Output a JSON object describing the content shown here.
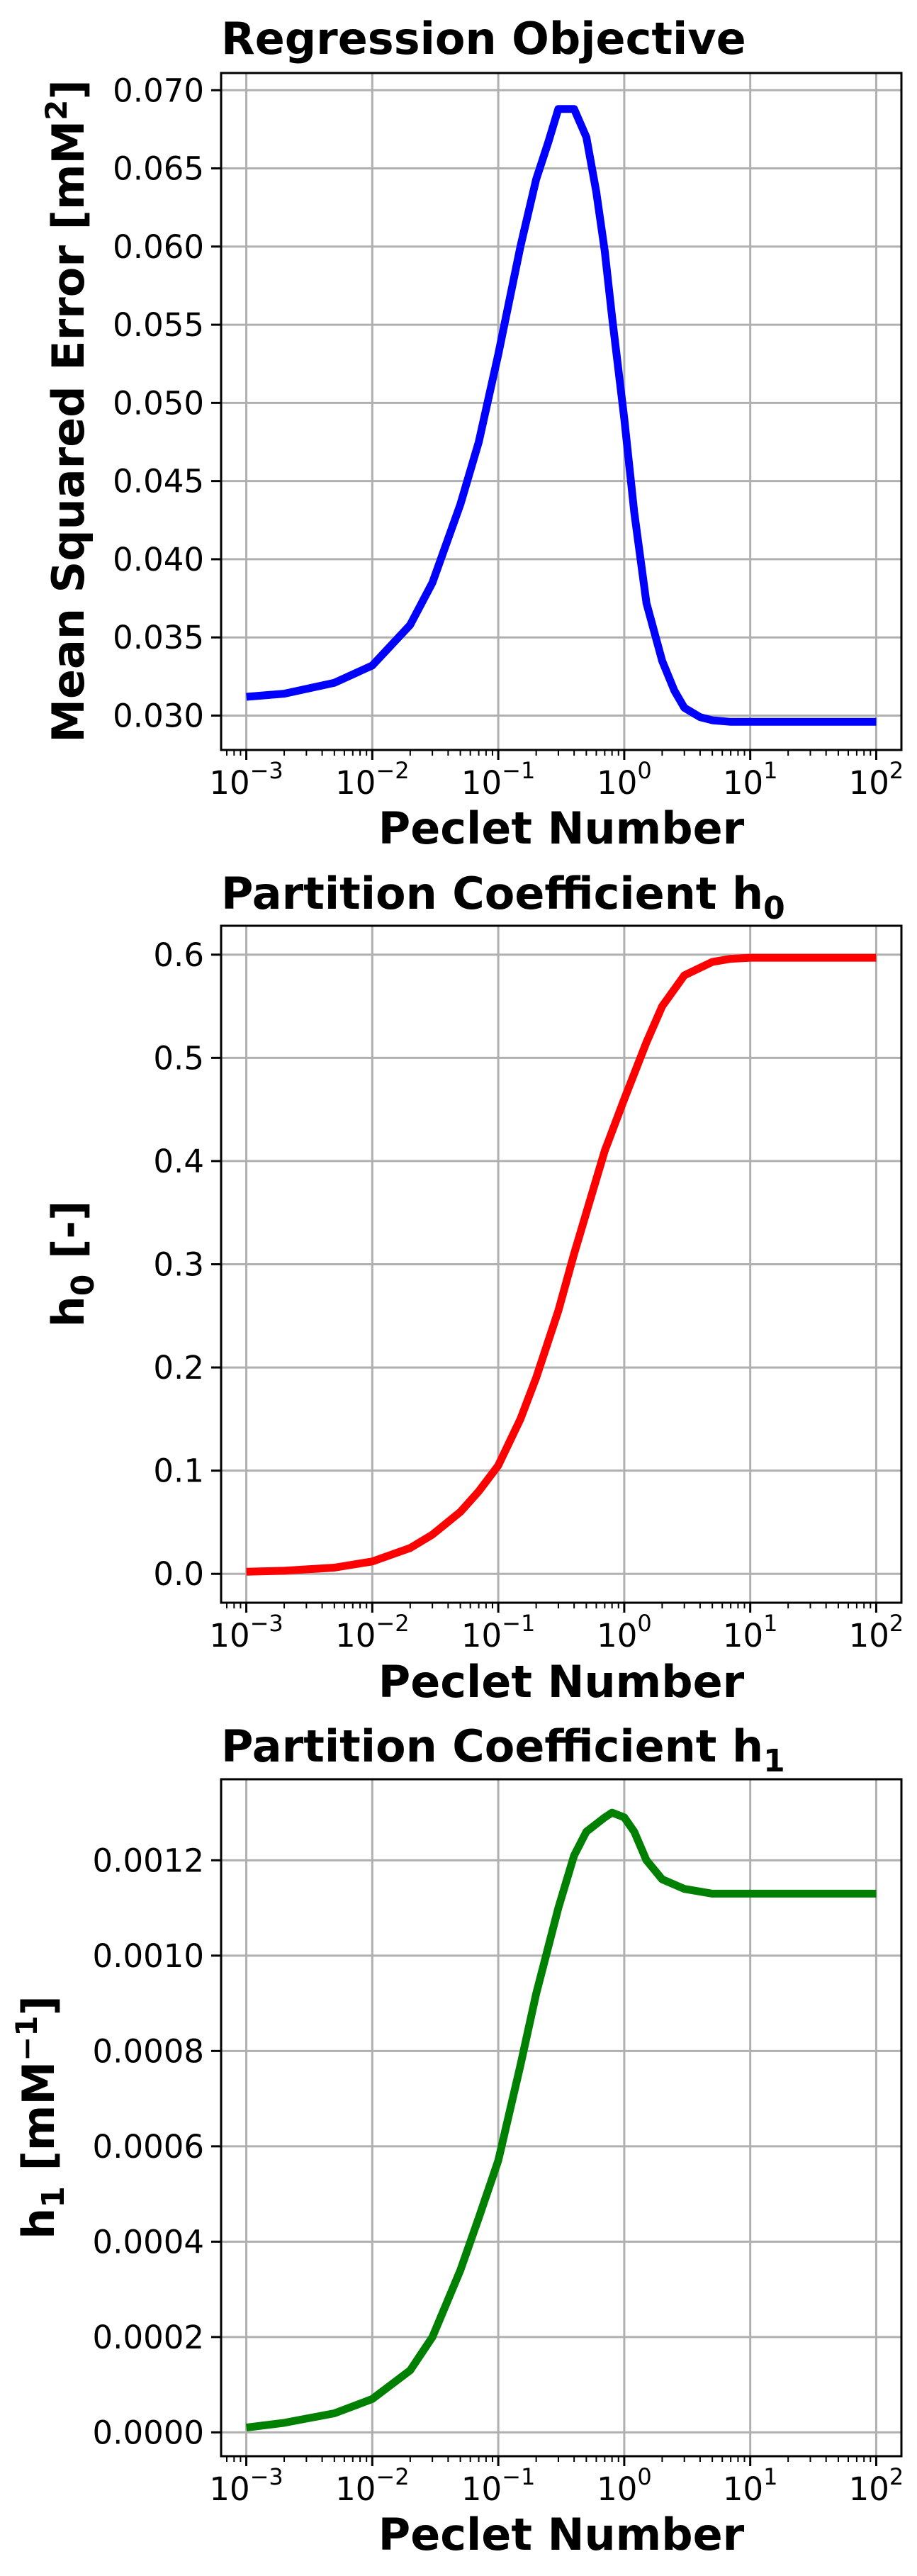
{
  "chart_data": [
    {
      "type": "line",
      "title": "Regression Objective",
      "xlabel": "Peclet Number",
      "ylabel": "Mean Squared Error [mM",
      "ylabel_sup": "2",
      "ylabel_tail": "]",
      "xscale": "log",
      "xlim": [
        -3.2,
        2.2
      ],
      "ylim": [
        0.0278,
        0.0711
      ],
      "grid": true,
      "color": "#0000ff",
      "xticks": [
        {
          "base": "10",
          "exp": "−3"
        },
        {
          "base": "10",
          "exp": "−2"
        },
        {
          "base": "10",
          "exp": "−1"
        },
        {
          "base": "10",
          "exp": "0"
        },
        {
          "base": "10",
          "exp": "1"
        },
        {
          "base": "10",
          "exp": "2"
        }
      ],
      "yticks": [
        "0.030",
        "0.035",
        "0.040",
        "0.045",
        "0.050",
        "0.055",
        "0.060",
        "0.065",
        "0.070"
      ],
      "ytick_values": [
        0.03,
        0.035,
        0.04,
        0.045,
        0.05,
        0.055,
        0.06,
        0.065,
        0.07
      ],
      "series": [
        {
          "x": [
            0.001,
            0.002,
            0.005,
            0.01,
            0.02,
            0.03,
            0.05,
            0.07,
            0.1,
            0.15,
            0.2,
            0.25,
            0.3,
            0.4,
            0.5,
            0.6,
            0.7,
            0.8,
            1.0,
            1.2,
            1.5,
            2,
            2.5,
            3,
            4,
            5,
            7,
            10,
            20,
            50,
            100
          ],
          "y": [
            0.0312,
            0.0314,
            0.0321,
            0.0332,
            0.0358,
            0.0385,
            0.0435,
            0.0475,
            0.0531,
            0.06,
            0.0643,
            0.0667,
            0.0688,
            0.0688,
            0.067,
            0.0635,
            0.0597,
            0.0555,
            0.049,
            0.043,
            0.0372,
            0.0335,
            0.0316,
            0.0305,
            0.0299,
            0.0297,
            0.0296,
            0.0296,
            0.0296,
            0.0296,
            0.0296
          ]
        }
      ]
    },
    {
      "type": "line",
      "title": "Partition Coefficient h",
      "title_sub": "0",
      "xlabel": "Peclet Number",
      "ylabel": "h",
      "ylabel_sub": "0",
      "ylabel_tail": " [-]",
      "xscale": "log",
      "xlim": [
        -3.2,
        2.2
      ],
      "ylim": [
        -0.028,
        0.628
      ],
      "grid": true,
      "color": "#ff0000",
      "xticks": [
        {
          "base": "10",
          "exp": "−3"
        },
        {
          "base": "10",
          "exp": "−2"
        },
        {
          "base": "10",
          "exp": "−1"
        },
        {
          "base": "10",
          "exp": "0"
        },
        {
          "base": "10",
          "exp": "1"
        },
        {
          "base": "10",
          "exp": "2"
        }
      ],
      "yticks": [
        "0.0",
        "0.1",
        "0.2",
        "0.3",
        "0.4",
        "0.5",
        "0.6"
      ],
      "ytick_values": [
        0.0,
        0.1,
        0.2,
        0.3,
        0.4,
        0.5,
        0.6
      ],
      "series": [
        {
          "x": [
            0.001,
            0.002,
            0.005,
            0.01,
            0.02,
            0.03,
            0.05,
            0.07,
            0.1,
            0.15,
            0.2,
            0.3,
            0.4,
            0.5,
            0.7,
            1.0,
            1.5,
            2,
            3,
            5,
            7,
            10,
            20,
            50,
            100
          ],
          "y": [
            0.002,
            0.003,
            0.006,
            0.012,
            0.025,
            0.038,
            0.06,
            0.08,
            0.105,
            0.15,
            0.19,
            0.255,
            0.31,
            0.35,
            0.41,
            0.46,
            0.515,
            0.55,
            0.58,
            0.593,
            0.596,
            0.597,
            0.597,
            0.597,
            0.597
          ]
        }
      ]
    },
    {
      "type": "line",
      "title": "Partition Coefficient h",
      "title_sub": "1",
      "xlabel": "Peclet Number",
      "ylabel": "h",
      "ylabel_sub": "1",
      "ylabel_tail": " [mM",
      "ylabel_sup": "−1",
      "ylabel_end": "]",
      "xscale": "log",
      "xlim": [
        -3.2,
        2.2
      ],
      "ylim": [
        -5e-05,
        0.00137
      ],
      "grid": true,
      "color": "#008000",
      "xticks": [
        {
          "base": "10",
          "exp": "−3"
        },
        {
          "base": "10",
          "exp": "−2"
        },
        {
          "base": "10",
          "exp": "−1"
        },
        {
          "base": "10",
          "exp": "0"
        },
        {
          "base": "10",
          "exp": "1"
        },
        {
          "base": "10",
          "exp": "2"
        }
      ],
      "yticks": [
        "0.0000",
        "0.0002",
        "0.0004",
        "0.0006",
        "0.0008",
        "0.0010",
        "0.0012"
      ],
      "ytick_values": [
        0.0,
        0.0002,
        0.0004,
        0.0006,
        0.0008,
        0.001,
        0.0012
      ],
      "series": [
        {
          "x": [
            0.001,
            0.002,
            0.005,
            0.01,
            0.02,
            0.03,
            0.05,
            0.07,
            0.1,
            0.15,
            0.2,
            0.3,
            0.4,
            0.5,
            0.7,
            0.8,
            1.0,
            1.2,
            1.5,
            2,
            3,
            5,
            7,
            10,
            20,
            50,
            100
          ],
          "y": [
            1e-05,
            2e-05,
            4e-05,
            7e-05,
            0.00013,
            0.0002,
            0.00034,
            0.00045,
            0.00057,
            0.00077,
            0.00092,
            0.0011,
            0.00121,
            0.00126,
            0.00129,
            0.0013,
            0.00129,
            0.00126,
            0.0012,
            0.00116,
            0.00114,
            0.00113,
            0.00113,
            0.00113,
            0.00113,
            0.00113,
            0.00113
          ]
        }
      ]
    }
  ]
}
